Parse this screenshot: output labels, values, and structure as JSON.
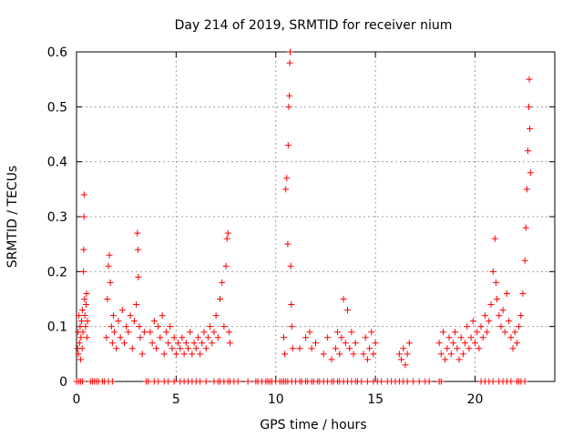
{
  "chart_data": {
    "type": "scatter",
    "title": "Day 214 of 2019, SRMTID for receiver nium",
    "xlabel": "GPS time / hours",
    "ylabel": "SRMTID / TECUs",
    "xlim": [
      0,
      24
    ],
    "ylim": [
      0,
      0.6
    ],
    "xticks": [
      0,
      5,
      10,
      15,
      20
    ],
    "xtick_labels": [
      "0",
      "5",
      "10",
      "15",
      "20"
    ],
    "yticks": [
      0,
      0.1,
      0.2,
      0.3,
      0.4,
      0.5,
      0.6
    ],
    "ytick_labels": [
      "0",
      "0.1",
      "0.2",
      "0.3",
      "0.4",
      "0.5",
      "0.6"
    ],
    "grid": true,
    "marker": "+",
    "series_color": "#ff0000",
    "series": [
      {
        "name": "SRMTID",
        "points": [
          [
            0.05,
            0.06
          ],
          [
            0.08,
            0.09
          ],
          [
            0.1,
            0.05
          ],
          [
            0.12,
            0.12
          ],
          [
            0.15,
            0.07
          ],
          [
            0.18,
            0.1
          ],
          [
            0.2,
            0.04
          ],
          [
            0.22,
            0.08
          ],
          [
            0.25,
            0.11
          ],
          [
            0.28,
            0.06
          ],
          [
            0.3,
            0.13
          ],
          [
            0.32,
            0.09
          ],
          [
            0.35,
            0.2
          ],
          [
            0.36,
            0.24
          ],
          [
            0.37,
            0.3
          ],
          [
            0.38,
            0.34
          ],
          [
            0.4,
            0.15
          ],
          [
            0.42,
            0.12
          ],
          [
            0.45,
            0.1
          ],
          [
            0.48,
            0.14
          ],
          [
            0.5,
            0.16
          ],
          [
            0.52,
            0.08
          ],
          [
            0.55,
            0.11
          ],
          [
            1.5,
            0.08
          ],
          [
            1.55,
            0.15
          ],
          [
            1.6,
            0.21
          ],
          [
            1.65,
            0.23
          ],
          [
            1.7,
            0.18
          ],
          [
            1.75,
            0.1
          ],
          [
            1.8,
            0.07
          ],
          [
            1.85,
            0.12
          ],
          [
            1.9,
            0.09
          ],
          [
            2.0,
            0.06
          ],
          [
            2.1,
            0.11
          ],
          [
            2.2,
            0.08
          ],
          [
            2.3,
            0.13
          ],
          [
            2.4,
            0.07
          ],
          [
            2.5,
            0.1
          ],
          [
            2.6,
            0.09
          ],
          [
            2.7,
            0.12
          ],
          [
            2.8,
            0.06
          ],
          [
            2.9,
            0.11
          ],
          [
            3.0,
            0.14
          ],
          [
            3.05,
            0.27
          ],
          [
            3.08,
            0.24
          ],
          [
            3.1,
            0.19
          ],
          [
            3.15,
            0.1
          ],
          [
            3.2,
            0.08
          ],
          [
            3.3,
            0.05
          ],
          [
            3.4,
            0.09
          ],
          [
            3.7,
            0.09
          ],
          [
            3.8,
            0.07
          ],
          [
            3.9,
            0.11
          ],
          [
            4.0,
            0.06
          ],
          [
            4.1,
            0.1
          ],
          [
            4.2,
            0.08
          ],
          [
            4.3,
            0.12
          ],
          [
            4.4,
            0.05
          ],
          [
            4.5,
            0.09
          ],
          [
            4.6,
            0.07
          ],
          [
            4.7,
            0.1
          ],
          [
            4.8,
            0.06
          ],
          [
            4.9,
            0.08
          ],
          [
            5.0,
            0.05
          ],
          [
            5.1,
            0.07
          ],
          [
            5.2,
            0.06
          ],
          [
            5.3,
            0.08
          ],
          [
            5.4,
            0.05
          ],
          [
            5.5,
            0.07
          ],
          [
            5.6,
            0.06
          ],
          [
            5.7,
            0.09
          ],
          [
            5.8,
            0.05
          ],
          [
            5.9,
            0.07
          ],
          [
            6.0,
            0.06
          ],
          [
            6.1,
            0.08
          ],
          [
            6.2,
            0.05
          ],
          [
            6.3,
            0.07
          ],
          [
            6.4,
            0.09
          ],
          [
            6.5,
            0.06
          ],
          [
            6.6,
            0.08
          ],
          [
            6.7,
            0.1
          ],
          [
            6.8,
            0.07
          ],
          [
            6.9,
            0.09
          ],
          [
            7.0,
            0.12
          ],
          [
            7.1,
            0.08
          ],
          [
            7.2,
            0.15
          ],
          [
            7.3,
            0.18
          ],
          [
            7.4,
            0.1
          ],
          [
            7.5,
            0.21
          ],
          [
            7.55,
            0.26
          ],
          [
            7.6,
            0.27
          ],
          [
            7.65,
            0.09
          ],
          [
            7.7,
            0.07
          ],
          [
            10.4,
            0.08
          ],
          [
            10.45,
            0.05
          ],
          [
            10.5,
            0.35
          ],
          [
            10.55,
            0.37
          ],
          [
            10.6,
            0.25
          ],
          [
            10.62,
            0.43
          ],
          [
            10.65,
            0.5
          ],
          [
            10.68,
            0.52
          ],
          [
            10.7,
            0.58
          ],
          [
            10.72,
            0.6
          ],
          [
            10.75,
            0.21
          ],
          [
            10.78,
            0.14
          ],
          [
            10.8,
            0.1
          ],
          [
            10.85,
            0.06
          ],
          [
            11.2,
            0.06
          ],
          [
            11.5,
            0.08
          ],
          [
            11.7,
            0.09
          ],
          [
            11.8,
            0.06
          ],
          [
            12.0,
            0.07
          ],
          [
            12.4,
            0.05
          ],
          [
            12.6,
            0.08
          ],
          [
            12.8,
            0.04
          ],
          [
            13.0,
            0.06
          ],
          [
            13.1,
            0.09
          ],
          [
            13.2,
            0.05
          ],
          [
            13.3,
            0.08
          ],
          [
            13.4,
            0.15
          ],
          [
            13.5,
            0.07
          ],
          [
            13.6,
            0.13
          ],
          [
            13.7,
            0.06
          ],
          [
            13.8,
            0.09
          ],
          [
            13.9,
            0.05
          ],
          [
            14.0,
            0.07
          ],
          [
            14.4,
            0.05
          ],
          [
            14.5,
            0.08
          ],
          [
            14.6,
            0.04
          ],
          [
            14.7,
            0.06
          ],
          [
            14.8,
            0.09
          ],
          [
            14.9,
            0.05
          ],
          [
            15.0,
            0.07
          ],
          [
            16.2,
            0.05
          ],
          [
            16.3,
            0.04
          ],
          [
            16.4,
            0.06
          ],
          [
            16.5,
            0.03
          ],
          [
            16.6,
            0.05
          ],
          [
            16.7,
            0.07
          ],
          [
            18.2,
            0.07
          ],
          [
            18.3,
            0.05
          ],
          [
            18.4,
            0.09
          ],
          [
            18.5,
            0.04
          ],
          [
            18.6,
            0.06
          ],
          [
            18.7,
            0.08
          ],
          [
            18.8,
            0.05
          ],
          [
            18.9,
            0.07
          ],
          [
            19.0,
            0.09
          ],
          [
            19.1,
            0.06
          ],
          [
            19.2,
            0.04
          ],
          [
            19.3,
            0.08
          ],
          [
            19.4,
            0.05
          ],
          [
            19.5,
            0.07
          ],
          [
            19.6,
            0.1
          ],
          [
            19.7,
            0.06
          ],
          [
            19.8,
            0.08
          ],
          [
            19.9,
            0.11
          ],
          [
            20.0,
            0.07
          ],
          [
            20.1,
            0.09
          ],
          [
            20.2,
            0.06
          ],
          [
            20.3,
            0.1
          ],
          [
            20.4,
            0.08
          ],
          [
            20.5,
            0.12
          ],
          [
            20.6,
            0.09
          ],
          [
            20.7,
            0.11
          ],
          [
            20.8,
            0.14
          ],
          [
            20.9,
            0.2
          ],
          [
            21.0,
            0.26
          ],
          [
            21.05,
            0.18
          ],
          [
            21.1,
            0.15
          ],
          [
            21.2,
            0.12
          ],
          [
            21.3,
            0.1
          ],
          [
            21.4,
            0.13
          ],
          [
            21.5,
            0.09
          ],
          [
            21.6,
            0.16
          ],
          [
            21.7,
            0.11
          ],
          [
            21.8,
            0.08
          ],
          [
            21.9,
            0.06
          ],
          [
            22.0,
            0.09
          ],
          [
            22.1,
            0.07
          ],
          [
            22.2,
            0.1
          ],
          [
            22.3,
            0.12
          ],
          [
            22.4,
            0.16
          ],
          [
            22.5,
            0.22
          ],
          [
            22.55,
            0.28
          ],
          [
            22.6,
            0.35
          ],
          [
            22.65,
            0.42
          ],
          [
            22.7,
            0.5
          ],
          [
            22.72,
            0.55
          ],
          [
            22.75,
            0.46
          ],
          [
            22.78,
            0.38
          ]
        ],
        "zero_points_x": [
          0.0,
          0.1,
          0.2,
          0.3,
          0.7,
          0.8,
          0.9,
          1.0,
          1.1,
          1.3,
          1.4,
          1.6,
          1.8,
          3.5,
          3.6,
          3.9,
          4.1,
          4.4,
          4.6,
          4.9,
          5.2,
          5.4,
          5.6,
          5.8,
          6.0,
          6.2,
          6.5,
          6.9,
          7.1,
          7.2,
          7.4,
          7.6,
          7.7,
          7.9,
          8.1,
          8.6,
          9.0,
          9.1,
          9.3,
          9.5,
          9.6,
          9.7,
          9.8,
          10.0,
          10.2,
          10.3,
          10.4,
          10.5,
          10.6,
          10.8,
          11.0,
          11.2,
          11.3,
          11.5,
          11.6,
          11.8,
          11.9,
          12.1,
          12.2,
          12.4,
          12.6,
          12.8,
          12.9,
          13.1,
          13.2,
          13.4,
          13.6,
          13.8,
          14.0,
          14.1,
          14.3,
          14.6,
          14.9,
          15.1,
          15.3,
          15.6,
          15.8,
          16.0,
          16.2,
          16.4,
          16.6,
          16.9,
          17.2,
          17.5,
          17.7,
          18.2,
          18.3,
          20.3,
          20.5,
          20.7,
          20.9,
          21.2,
          21.4,
          21.6,
          21.8,
          22.1,
          22.2,
          22.3,
          22.5
        ]
      }
    ]
  }
}
